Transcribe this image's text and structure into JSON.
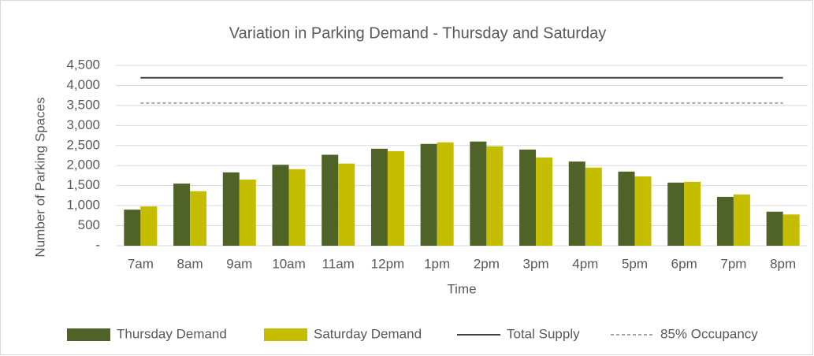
{
  "chart_data": {
    "type": "bar",
    "title": "Variation in Parking Demand - Thursday and Saturday",
    "x_label": "Time",
    "y_label": "Number of Parking Spaces",
    "categories": [
      "7am",
      "8am",
      "9am",
      "10am",
      "11am",
      "12pm",
      "1pm",
      "2pm",
      "3pm",
      "4pm",
      "5pm",
      "6pm",
      "7pm",
      "8pm"
    ],
    "series": [
      {
        "name": "Thursday Demand",
        "type": "bar",
        "color": "#4f6228",
        "values": [
          900,
          1550,
          1830,
          2020,
          2270,
          2420,
          2540,
          2600,
          2400,
          2100,
          1850,
          1575,
          1220,
          850
        ]
      },
      {
        "name": "Saturday Demand",
        "type": "bar",
        "color": "#c4bd00",
        "values": [
          980,
          1360,
          1650,
          1910,
          2050,
          2360,
          2580,
          2480,
          2200,
          1950,
          1730,
          1595,
          1280,
          780
        ]
      },
      {
        "name": "Total Supply",
        "type": "line",
        "color": "#404040",
        "dashed": false,
        "values": [
          4190,
          4190,
          4190,
          4190,
          4190,
          4190,
          4190,
          4190,
          4190,
          4190,
          4190,
          4190,
          4190,
          4190
        ]
      },
      {
        "name": "85% Occupancy",
        "type": "line",
        "color": "#a6a6a6",
        "dashed": true,
        "values": [
          3560,
          3560,
          3560,
          3560,
          3560,
          3560,
          3560,
          3560,
          3560,
          3560,
          3560,
          3560,
          3560,
          3560
        ]
      }
    ],
    "ylim": [
      0,
      4500
    ],
    "yticks": [
      {
        "value": 0,
        "label": "-"
      },
      500,
      {
        "value": 1000,
        "label": "1,000"
      },
      {
        "value": 1500,
        "label": "1,500"
      },
      {
        "value": 2000,
        "label": "2,000"
      },
      {
        "value": 2500,
        "label": "2,500"
      },
      {
        "value": 3000,
        "label": "3,000"
      },
      {
        "value": 3500,
        "label": "3,500"
      },
      {
        "value": 4000,
        "label": "4,000"
      },
      {
        "value": 4500,
        "label": "4,500"
      }
    ],
    "grid": true,
    "legend": "bottom"
  }
}
